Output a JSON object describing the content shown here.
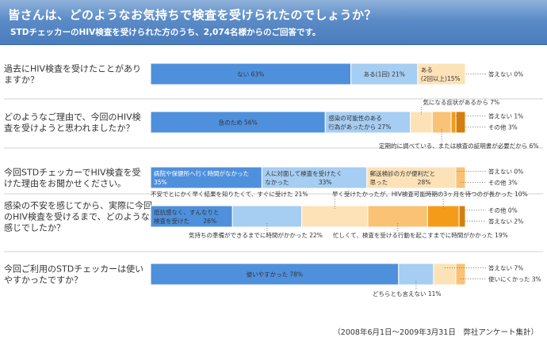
{
  "header": {
    "title": "皆さんは、どのようなお気持ちで検査を受けられたのでしょうか？",
    "subtitle": "STDチェッカーのHIV検査を受けられた方のうち、2,074名様からのご回答です。"
  },
  "footer": {
    "note": "（2008年6月1日～2009年3月31日　弊社アンケート集計）"
  },
  "colors": {
    "blue": "#4f90dc",
    "light_blue": "#a6cdf2",
    "cream": "#fde2b8",
    "light_orange": "#fac274",
    "orange": "#f59b1a",
    "deep_orange": "#d67e0a",
    "text_dark": "#333333",
    "separator": "#d2d2d2"
  },
  "chart_data": {
    "type": "bar",
    "subtype": "stacked-horizontal-100-percent",
    "title": "皆さんは、どのようなお気持ちで検査を受けられたのでしょうか？",
    "xlim": [
      0,
      100
    ],
    "grid": false,
    "legend": "none",
    "questions": [
      {
        "text": [
          "過去にHIV検査を受けたことがあり",
          "ますか？"
        ],
        "segments": [
          {
            "label": [
              "ない 63%"
            ],
            "value": 63,
            "color": "blue",
            "align": "center",
            "light": false
          },
          {
            "label": [
              "ある(1回) 21%"
            ],
            "value": 21,
            "color": "light_blue",
            "align": "center",
            "light": false
          },
          {
            "label": [
              "ある",
              "(2回以上)15%"
            ],
            "value": 15,
            "color": "cream",
            "align": "left",
            "light": false
          },
          {
            "label": [],
            "value": 0,
            "color": "orange",
            "align": "none",
            "light": false
          }
        ],
        "callouts": [
          {
            "text": "答えない 0%",
            "segment": 3,
            "side": "right",
            "row": 0
          }
        ]
      },
      {
        "text": [
          "どのようなご理由で、今回のHIV検",
          "査を受けようと思われましたか？"
        ],
        "segments": [
          {
            "label": [
              "急のため 56%"
            ],
            "value": 56,
            "color": "blue",
            "align": "center",
            "light": false
          },
          {
            "label": [
              "感染の可能性のある",
              "行為があったから 27%"
            ],
            "value": 27,
            "color": "light_blue",
            "align": "left",
            "light": false
          },
          {
            "label": [],
            "value": 7,
            "color": "cream",
            "align": "none",
            "light": false
          },
          {
            "label": [],
            "value": 6,
            "color": "light_orange",
            "align": "none",
            "light": false
          },
          {
            "label": [],
            "value": 1,
            "color": "orange",
            "align": "none",
            "light": false
          },
          {
            "label": [],
            "value": 3,
            "color": "deep_orange",
            "align": "none",
            "light": false
          }
        ],
        "callouts": [
          {
            "text": "気になる症状があるから 7%",
            "segment": 2,
            "side": "top",
            "row": 0
          },
          {
            "text": "答えない 1%",
            "segment": 4,
            "side": "right",
            "row": 0
          },
          {
            "text": "その他 3%",
            "segment": 5,
            "side": "right",
            "row": 1
          },
          {
            "text": "定期的に調べている、または検査の証明書が必要だから 6%",
            "segment": 3,
            "side": "bottom",
            "row": 0
          }
        ]
      },
      {
        "text": [
          "今回STDチェッカーでHIV検査を受",
          "けた理由をお聞かせください。"
        ],
        "segments": [
          {
            "label": [
              "病院や保健所へ行く時間がなかった",
              "35%"
            ],
            "value": 35,
            "color": "blue",
            "align": "left",
            "light": true
          },
          {
            "label": [
              "人に対面して検査を受けたく",
              "なかった　　　　　33%"
            ],
            "value": 33,
            "color": "light_blue",
            "align": "left",
            "light": false
          },
          {
            "label": [
              "郵送検診の方が便利だと",
              "思った　　　　　28%"
            ],
            "value": 28,
            "color": "cream",
            "align": "left",
            "light": false
          },
          {
            "label": [],
            "value": 0,
            "color": "orange",
            "align": "none",
            "light": false
          },
          {
            "label": [],
            "value": 3,
            "color": "light_orange",
            "align": "none",
            "light": false
          }
        ],
        "callouts": [
          {
            "text": "答えない 0%",
            "segment": 3,
            "side": "right",
            "row": 0
          },
          {
            "text": "その他 3%",
            "segment": 4,
            "side": "right",
            "row": 1
          }
        ]
      },
      {
        "text": [
          "感染の不安を感じてから、実際に今回",
          "のHIV検査を受けるまで、どのような",
          "感じでしたか？"
        ],
        "segments": [
          {
            "label": [
              "抵抗感なく、すんなりと",
              "検査を受けた　　 26%"
            ],
            "value": 26,
            "color": "blue",
            "align": "left",
            "light": false
          },
          {
            "label": [],
            "value": 22,
            "color": "light_blue",
            "align": "none",
            "light": false
          },
          {
            "label": [],
            "value": 21,
            "color": "cream",
            "align": "none",
            "light": false
          },
          {
            "label": [],
            "value": 19,
            "color": "light_orange",
            "align": "none",
            "light": false
          },
          {
            "label": [],
            "value": 10,
            "color": "orange",
            "align": "none",
            "light": false
          },
          {
            "label": [],
            "value": 0,
            "color": "deep_orange",
            "align": "none",
            "light": false
          },
          {
            "label": [],
            "value": 2,
            "color": "deep_orange",
            "align": "none",
            "light": false
          }
        ],
        "callouts": [
          {
            "text": "不安でとにかく早く結果を知りたくて、すぐに受けた 21%",
            "segment": 2,
            "side": "top",
            "row": 0
          },
          {
            "text": "早く受けたかったが、HIV検査可能時期の3ヶ月を待つのが長かった 10%",
            "segment": 4,
            "side": "top",
            "row": 1
          },
          {
            "text": "その他 0%",
            "segment": 5,
            "side": "right",
            "row": 0
          },
          {
            "text": "答えない 2%",
            "segment": 6,
            "side": "right",
            "row": 1
          },
          {
            "text": "気持ちの準備ができるまでに時間がかかった 22%",
            "segment": 1,
            "side": "bottom",
            "row": 0
          },
          {
            "text": "忙しくて、検査を受ける行動を起こすまでに時間がかかった 19%",
            "segment": 3,
            "side": "bottom",
            "row": 1
          }
        ]
      },
      {
        "text": [
          "今回ご利用のSTDチェッカーは使い",
          "やすかったですか？"
        ],
        "segments": [
          {
            "label": [
              "使いやすかった 78%"
            ],
            "value": 78,
            "color": "blue",
            "align": "center",
            "light": false
          },
          {
            "label": [],
            "value": 11,
            "color": "light_blue",
            "align": "none",
            "light": false
          },
          {
            "label": [],
            "value": 7,
            "color": "cream",
            "align": "none",
            "light": false
          },
          {
            "label": [],
            "value": 3,
            "color": "light_orange",
            "align": "none",
            "light": false
          }
        ],
        "callouts": [
          {
            "text": "答えない 7%",
            "segment": 2,
            "side": "right",
            "row": 0
          },
          {
            "text": "使いにくかった 3%",
            "segment": 3,
            "side": "right",
            "row": 1
          },
          {
            "text": "どちらとも言えない 11%",
            "segment": 1,
            "side": "bottom",
            "row": 0
          }
        ]
      }
    ]
  }
}
